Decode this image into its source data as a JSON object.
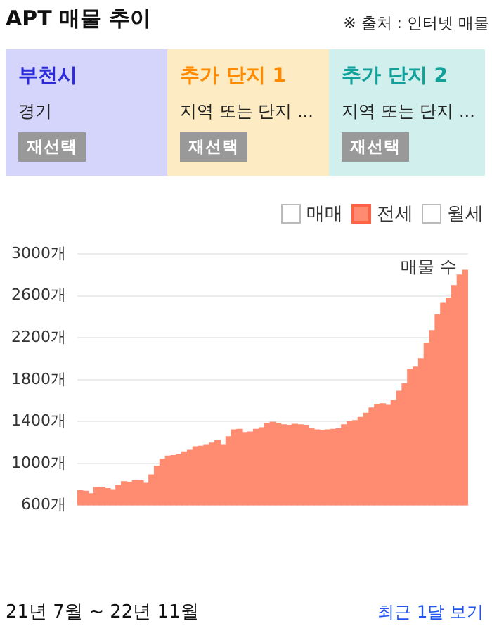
{
  "chart_data": {
    "type": "bar",
    "title": "APT 매물 추이",
    "categories": [
      null,
      null,
      null,
      null,
      null,
      null,
      null,
      null,
      null,
      null,
      null,
      null,
      null,
      null,
      null,
      null,
      null,
      null,
      null,
      null,
      null,
      null,
      null,
      null,
      null,
      null,
      null,
      null,
      null,
      null,
      null,
      null,
      null,
      null,
      null,
      null,
      null,
      null,
      null,
      null,
      null,
      null,
      null,
      null,
      null,
      null,
      null,
      null,
      null,
      null,
      null,
      null,
      null,
      null,
      null,
      null,
      null,
      null,
      null,
      null,
      null,
      null,
      null,
      null,
      null,
      null,
      null,
      null,
      null,
      null,
      null
    ],
    "series": [
      {
        "name": "전세",
        "color": "#ff8b70",
        "values": [
          743,
          735,
          710,
          770,
          770,
          760,
          750,
          790,
          825,
          820,
          835,
          833,
          810,
          890,
          975,
          1040,
          1070,
          1075,
          1085,
          1110,
          1125,
          1160,
          1165,
          1180,
          1195,
          1220,
          1180,
          1255,
          1320,
          1325,
          1295,
          1300,
          1325,
          1340,
          1385,
          1395,
          1385,
          1370,
          1365,
          1375,
          1370,
          1365,
          1335,
          1320,
          1315,
          1320,
          1325,
          1330,
          1370,
          1400,
          1410,
          1440,
          1480,
          1530,
          1565,
          1570,
          1555,
          1600,
          1690,
          1760,
          1895,
          1920,
          2000,
          2150,
          2270,
          2420,
          2530,
          2580,
          2700,
          2800,
          2845
        ]
      }
    ],
    "ylim": [
      600,
      3000
    ],
    "yticks": [
      {
        "value": 600,
        "label": "600개"
      },
      {
        "value": 1000,
        "label": "1000개"
      },
      {
        "value": 1400,
        "label": "1400개"
      },
      {
        "value": 1800,
        "label": "1800개"
      },
      {
        "value": 2200,
        "label": "2200개"
      },
      {
        "value": 2600,
        "label": "2600개"
      },
      {
        "value": 3000,
        "label": "3000개"
      }
    ],
    "grid": "y",
    "legend": "top right",
    "annotations": [
      "※ 출처 : 인터넷 매물",
      "부천시",
      "경기",
      "재선택",
      "추가 단지 1",
      "지역 또는 단지 ...",
      "재선택",
      "추가 단지 2",
      "지역 또는 단지 ...",
      "재선택",
      "매매",
      "월세",
      "매물 수",
      "21년 7월 ~ 22년 11월",
      "최근 1달 보기"
    ]
  }
}
